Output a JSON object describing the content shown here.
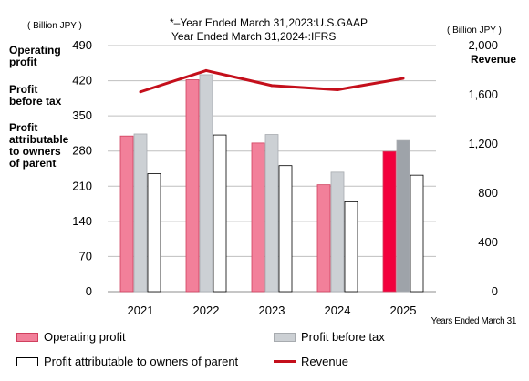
{
  "units": {
    "left": "( Billion JPY )",
    "right": "( Billion JPY )"
  },
  "note": {
    "line1": "*–Year Ended March 31,2023:U.S.GAAP",
    "line2": "Year Ended March 31,2024-:IFRS"
  },
  "left_labels": [
    "Operating\nprofit",
    "Profit\nbefore tax",
    "Profit\nattributable\nto owners\nof parent"
  ],
  "right_axis_title": "Revenue",
  "x_axis_note": "Years Ended March 31",
  "legend": {
    "operating": "Operating profit",
    "before_tax": "Profit before tax",
    "attributable": "Profit attributable to owners of parent",
    "revenue": "Revenue"
  },
  "colors": {
    "operating": "#f2809a",
    "operating_edge": "#d0405e",
    "operating_latest": "#f2003c",
    "before_tax": "#ccd0d4",
    "before_tax_edge": "#a7abaf",
    "before_tax_latest": "#9ea3a9",
    "attributable": "#ffffff",
    "attributable_edge": "#000000",
    "revenue": "#c40f1b",
    "grid": "#bfbfbf"
  },
  "chart_data": {
    "type": "bar",
    "categories": [
      "2021",
      "2022",
      "2023",
      "2024",
      "2025"
    ],
    "series": [
      {
        "name": "Operating profit",
        "axis": "left",
        "type": "bar",
        "values": [
          310,
          422,
          296,
          213,
          279
        ]
      },
      {
        "name": "Profit before tax",
        "axis": "left",
        "type": "bar",
        "values": [
          314,
          432,
          313,
          238,
          301
        ]
      },
      {
        "name": "Profit attributable to owners of parent",
        "axis": "left",
        "type": "bar",
        "values": [
          235,
          312,
          251,
          179,
          232
        ]
      },
      {
        "name": "Revenue",
        "axis": "right",
        "type": "line",
        "values": [
          1624,
          1797,
          1675,
          1641,
          1733
        ]
      }
    ],
    "left_axis": {
      "ticks": [
        "0",
        "70",
        "140",
        "210",
        "280",
        "350",
        "420",
        "490"
      ],
      "min": 0,
      "max": 490
    },
    "right_axis": {
      "ticks": [
        "0",
        "400",
        "800",
        "1,200",
        "1,600",
        "2,000"
      ],
      "min": 0,
      "max": 2000
    },
    "grid": true,
    "legend_position": "bottom"
  }
}
